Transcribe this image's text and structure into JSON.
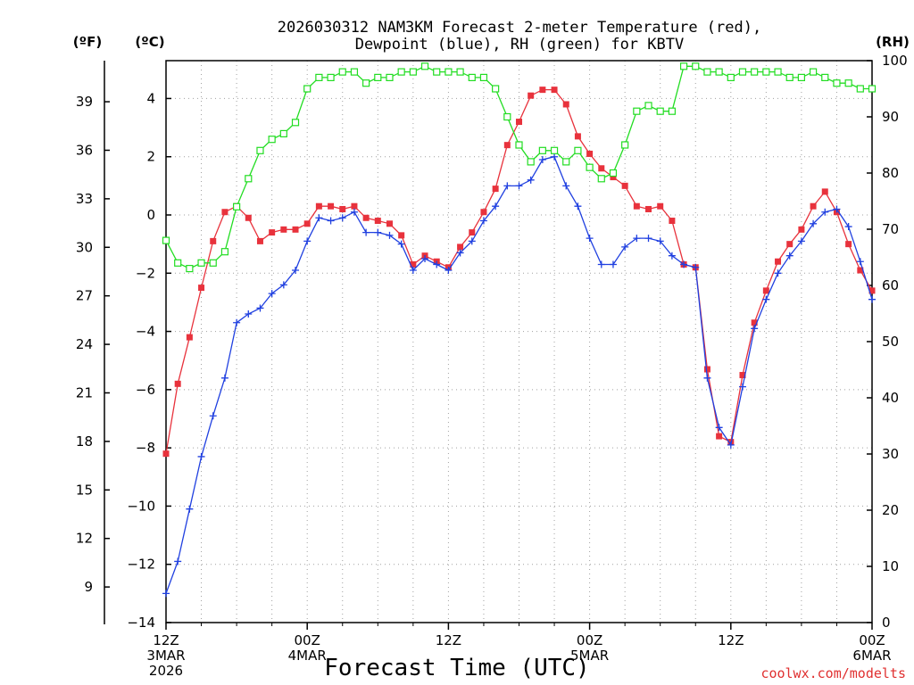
{
  "chart_data": {
    "type": "line",
    "title_line1": "2026030312 NAM3KM Forecast 2-meter Temperature (red),",
    "title_line2": "Dewpoint (blue), RH (green) for KBTV",
    "unit_f": "(ºF)",
    "unit_c": "(ºC)",
    "unit_rh": "(RH)",
    "xlabel": "Forecast Time (UTC)",
    "credit": "coolwx.com/modelts",
    "x_range": [
      0,
      60
    ],
    "x_ticks": [
      {
        "x": 0,
        "l1": "12Z",
        "l2": "3MAR",
        "l3": "2026"
      },
      {
        "x": 12,
        "l1": "00Z",
        "l2": "4MAR",
        "l3": ""
      },
      {
        "x": 24,
        "l1": "12Z",
        "l2": "",
        "l3": ""
      },
      {
        "x": 36,
        "l1": "00Z",
        "l2": "5MAR",
        "l3": ""
      },
      {
        "x": 48,
        "l1": "12Z",
        "l2": "",
        "l3": ""
      },
      {
        "x": 60,
        "l1": "00Z",
        "l2": "6MAR",
        "l3": ""
      }
    ],
    "c_range": [
      -14,
      5.3
    ],
    "c_ticks": [
      -14,
      -12,
      -10,
      -8,
      -6,
      -4,
      -2,
      0,
      2,
      4
    ],
    "f_ticks": [
      9,
      12,
      15,
      18,
      21,
      24,
      27,
      30,
      33,
      36,
      39
    ],
    "rh_range": [
      0,
      100
    ],
    "rh_ticks": [
      0,
      10,
      20,
      30,
      40,
      50,
      60,
      70,
      80,
      90,
      100
    ],
    "series": [
      {
        "name": "2-meter Temperature",
        "axis": "C",
        "color": "#e8323c",
        "marker": "filled-square",
        "values": [
          -8.2,
          -5.8,
          -4.2,
          -2.5,
          -0.9,
          0.1,
          0.3,
          -0.1,
          -0.9,
          -0.6,
          -0.5,
          -0.5,
          -0.3,
          0.3,
          0.3,
          0.2,
          0.3,
          -0.1,
          -0.2,
          -0.3,
          -0.7,
          -1.7,
          -1.4,
          -1.6,
          -1.8,
          -1.1,
          -0.6,
          0.1,
          0.9,
          2.4,
          3.2,
          4.1,
          4.3,
          4.3,
          3.8,
          2.7,
          2.1,
          1.6,
          1.3,
          1.0,
          0.3,
          0.2,
          0.3,
          -0.2,
          -1.7,
          -1.8,
          -5.3,
          -7.6,
          -7.8,
          -5.5,
          -3.7,
          -2.6,
          -1.6,
          -1.0,
          -0.5,
          0.3,
          0.8,
          0.1,
          -1.0,
          -1.9,
          -2.6
        ]
      },
      {
        "name": "Dewpoint",
        "axis": "C",
        "color": "#2040e0",
        "marker": "plus",
        "values": [
          -13.0,
          -11.9,
          -10.1,
          -8.3,
          -6.9,
          -5.6,
          -3.7,
          -3.4,
          -3.2,
          -2.7,
          -2.4,
          -1.9,
          -0.9,
          -0.1,
          -0.2,
          -0.1,
          0.1,
          -0.6,
          -0.6,
          -0.7,
          -1.0,
          -1.9,
          -1.5,
          -1.7,
          -1.9,
          -1.3,
          -0.9,
          -0.2,
          0.3,
          1.0,
          1.0,
          1.2,
          1.9,
          2.0,
          1.0,
          0.3,
          -0.8,
          -1.7,
          -1.7,
          -1.1,
          -0.8,
          -0.8,
          -0.9,
          -1.4,
          -1.7,
          -1.8,
          -5.6,
          -7.3,
          -7.9,
          -5.9,
          -3.9,
          -2.9,
          -2.0,
          -1.4,
          -0.9,
          -0.3,
          0.1,
          0.2,
          -0.4,
          -1.6,
          -2.9
        ]
      },
      {
        "name": "RH",
        "axis": "RH",
        "color": "#22dd22",
        "marker": "open-square",
        "values": [
          68,
          64,
          63,
          64,
          64,
          66,
          74,
          79,
          84,
          86,
          87,
          89,
          95,
          97,
          97,
          98,
          98,
          96,
          97,
          97,
          98,
          98,
          99,
          98,
          98,
          98,
          97,
          97,
          95,
          90,
          85,
          82,
          84,
          84,
          82,
          84,
          81,
          79,
          80,
          85,
          91,
          92,
          91,
          91,
          99,
          99,
          98,
          98,
          97,
          98,
          98,
          98,
          98,
          97,
          97,
          98,
          97,
          96,
          96,
          95,
          95
        ]
      }
    ]
  }
}
